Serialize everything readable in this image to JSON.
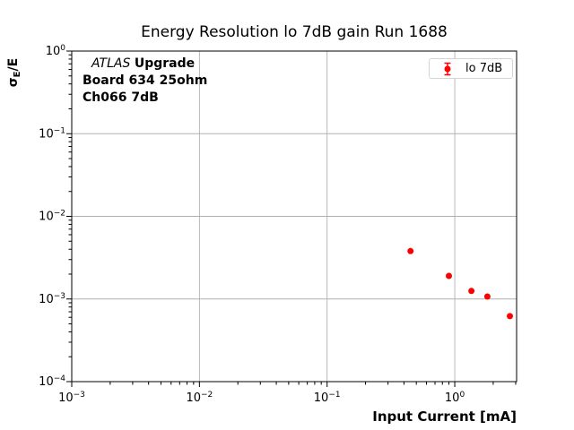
{
  "figure": {
    "annotation": {
      "line1_italic": "ATLAS",
      "line1_bold": "Upgrade",
      "line2": "Board 634 25ohm",
      "line3": "Ch066 7dB"
    },
    "legend": {
      "label": "lo 7dB",
      "marker": "red-errorbar-point"
    },
    "ylabel_parts": {
      "base": "σ",
      "sub": "E",
      "rest": "/E"
    }
  },
  "chart_data": {
    "type": "scatter",
    "title": "Energy Resolution lo 7dB gain Run 1688",
    "xlabel": "Input Current [mA]",
    "ylabel": "σ_E/E",
    "x_scale": "log",
    "y_scale": "log",
    "xlim": [
      0.001,
      3.05
    ],
    "ylim": [
      0.0001,
      1.0
    ],
    "x_tick_exponents": [
      -3,
      -2,
      -1,
      0
    ],
    "y_tick_exponents": [
      0,
      -1,
      -2,
      -3,
      -4
    ],
    "grid": true,
    "legend_position": "upper right",
    "series": [
      {
        "name": "lo 7dB",
        "color": "#ff0000",
        "marker": "circle-with-errorbar",
        "points": [
          {
            "x": 0.45,
            "y": 0.0038
          },
          {
            "x": 0.9,
            "y": 0.0019
          },
          {
            "x": 1.35,
            "y": 0.00125
          },
          {
            "x": 1.8,
            "y": 0.00107
          },
          {
            "x": 2.7,
            "y": 0.00062
          }
        ]
      }
    ],
    "colors": {
      "marker": "#ff0000",
      "grid": "#b0b0b0",
      "axis": "#000000",
      "background": "#ffffff"
    }
  }
}
